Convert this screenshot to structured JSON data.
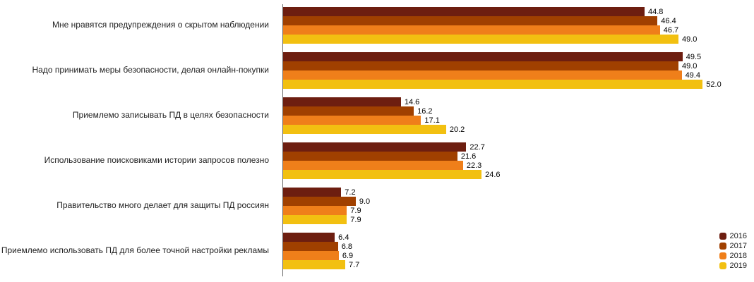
{
  "chart_data": {
    "type": "bar",
    "orientation": "horizontal",
    "title": "",
    "xlabel": "",
    "ylabel": "",
    "xlim": [
      0,
      56
    ],
    "grid": false,
    "legend_position": "bottom-right",
    "axis_color": "#6e6e6e",
    "background": "#ffffff",
    "value_label_decimals": 1,
    "categories": [
      "Мне нравятся предупреждения о скрытом наблюдении",
      "Надо принимать меры безопасности, делая онлайн-покупки",
      "Приемлемо записывать ПД в целях безопасности",
      "Использование поисковиками истории запросов полезно",
      "Правительство много делает для защиты ПД россиян",
      "Приемлемо использовать ПД для более точной настройки рекламы"
    ],
    "series": [
      {
        "name": "2016",
        "color": "#6d1e10",
        "values": [
          44.8,
          49.5,
          14.6,
          22.7,
          7.2,
          6.4
        ]
      },
      {
        "name": "2017",
        "color": "#a04000",
        "values": [
          46.4,
          49.0,
          16.2,
          21.6,
          9.0,
          6.8
        ]
      },
      {
        "name": "2018",
        "color": "#ef7f1a",
        "values": [
          46.7,
          49.4,
          17.1,
          22.3,
          7.9,
          6.9
        ]
      },
      {
        "name": "2019",
        "color": "#f2c011",
        "values": [
          49.0,
          52.0,
          20.2,
          24.6,
          7.9,
          7.7
        ]
      }
    ]
  }
}
